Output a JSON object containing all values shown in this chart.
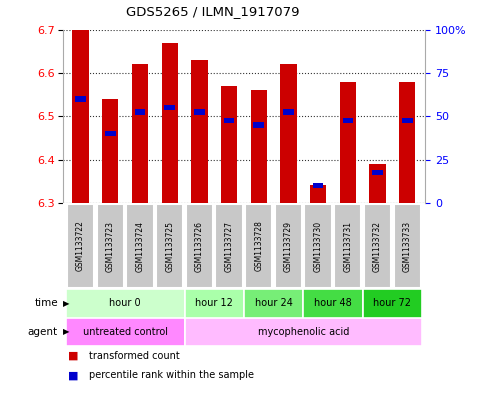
{
  "title": "GDS5265 / ILMN_1917079",
  "samples": [
    "GSM1133722",
    "GSM1133723",
    "GSM1133724",
    "GSM1133725",
    "GSM1133726",
    "GSM1133727",
    "GSM1133728",
    "GSM1133729",
    "GSM1133730",
    "GSM1133731",
    "GSM1133732",
    "GSM1133733"
  ],
  "bar_tops": [
    6.7,
    6.54,
    6.62,
    6.67,
    6.63,
    6.57,
    6.56,
    6.62,
    6.34,
    6.58,
    6.39,
    6.58
  ],
  "bar_base": 6.3,
  "percentile_values": [
    6.54,
    6.46,
    6.51,
    6.52,
    6.51,
    6.49,
    6.48,
    6.51,
    6.34,
    6.49,
    6.37,
    6.49
  ],
  "ylim": [
    6.3,
    6.7
  ],
  "y2lim": [
    0,
    100
  ],
  "yticks": [
    6.3,
    6.4,
    6.5,
    6.6,
    6.7
  ],
  "y2ticks": [
    0,
    25,
    50,
    75,
    100
  ],
  "y2ticklabels": [
    "0",
    "25",
    "50",
    "75",
    "100%"
  ],
  "bar_color": "#cc0000",
  "percentile_color": "#0000cc",
  "time_groups": [
    {
      "label": "hour 0",
      "start": 0,
      "end": 4,
      "color": "#ccffcc"
    },
    {
      "label": "hour 12",
      "start": 4,
      "end": 6,
      "color": "#aaffaa"
    },
    {
      "label": "hour 24",
      "start": 6,
      "end": 8,
      "color": "#77ee77"
    },
    {
      "label": "hour 48",
      "start": 8,
      "end": 10,
      "color": "#44dd44"
    },
    {
      "label": "hour 72",
      "start": 10,
      "end": 12,
      "color": "#22cc22"
    }
  ],
  "agent_groups": [
    {
      "label": "untreated control",
      "start": 0,
      "end": 4,
      "color": "#ff88ff"
    },
    {
      "label": "mycophenolic acid",
      "start": 4,
      "end": 12,
      "color": "#ffbbff"
    }
  ],
  "sample_bg": "#c8c8c8",
  "legend_items": [
    {
      "color": "#cc0000",
      "label": "transformed count"
    },
    {
      "color": "#0000cc",
      "label": "percentile rank within the sample"
    }
  ],
  "bar_width": 0.55
}
